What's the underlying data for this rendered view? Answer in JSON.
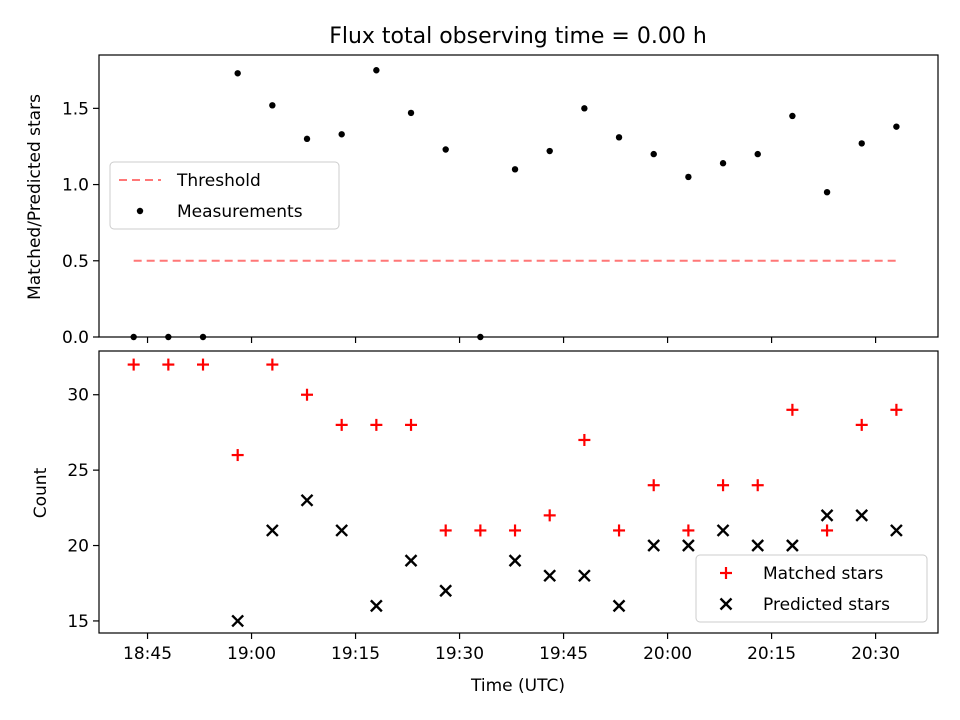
{
  "chart_data": [
    {
      "type": "scatter",
      "title": "Flux total observing time = 0.00 h",
      "xlabel": "",
      "ylabel": "Matched/Predicted stars",
      "x_unit": "time of day (UTC)",
      "ylim": [
        0,
        1.85
      ],
      "yticks": [
        0.0,
        0.5,
        1.0,
        1.5
      ],
      "ytick_labels": [
        "0.0",
        "0.5",
        "1.0",
        "1.5"
      ],
      "legend_position": "center-left",
      "series": [
        {
          "name": "Threshold",
          "kind": "dashed-line",
          "color": "#ff7777",
          "x": [
            "18:43",
            "20:33"
          ],
          "y": [
            0.5,
            0.5
          ]
        },
        {
          "name": "Measurements",
          "kind": "dot",
          "color": "#000000",
          "x": [
            "18:43",
            "18:48",
            "18:53",
            "18:58",
            "19:03",
            "19:08",
            "19:13",
            "19:18",
            "19:23",
            "19:28",
            "19:33",
            "19:38",
            "19:43",
            "19:48",
            "19:53",
            "19:58",
            "20:03",
            "20:08",
            "20:13",
            "20:18",
            "20:23",
            "20:28",
            "20:33"
          ],
          "y": [
            0.0,
            0.0,
            0.0,
            1.73,
            1.52,
            1.3,
            1.33,
            1.75,
            1.47,
            1.23,
            0.0,
            1.1,
            1.22,
            1.5,
            1.31,
            1.2,
            1.05,
            1.14,
            1.2,
            1.45,
            0.95,
            1.27,
            1.38
          ]
        }
      ]
    },
    {
      "type": "scatter",
      "title": "",
      "xlabel": "Time (UTC)",
      "ylabel": "Count",
      "ylim": [
        14.2,
        32.9
      ],
      "yticks": [
        15,
        20,
        25,
        30
      ],
      "ytick_labels": [
        "15",
        "20",
        "25",
        "30"
      ],
      "xlim": [
        "18:38",
        "20:39"
      ],
      "xticks": [
        "18:45",
        "19:00",
        "19:15",
        "19:30",
        "19:45",
        "20:00",
        "20:15",
        "20:30"
      ],
      "xtick_labels": [
        "18:45",
        "19:00",
        "19:15",
        "19:30",
        "19:45",
        "20:00",
        "20:15",
        "20:30"
      ],
      "legend_position": "lower-right",
      "series": [
        {
          "name": "Matched stars",
          "kind": "plus",
          "color": "#ff0000",
          "x": [
            "18:43",
            "18:48",
            "18:53",
            "18:58",
            "19:03",
            "19:08",
            "19:13",
            "19:18",
            "19:23",
            "19:28",
            "19:33",
            "19:38",
            "19:43",
            "19:48",
            "19:53",
            "19:58",
            "20:03",
            "20:08",
            "20:13",
            "20:18",
            "20:23",
            "20:28",
            "20:33"
          ],
          "y": [
            32,
            32,
            32,
            26,
            32,
            30,
            28,
            28,
            28,
            21,
            21,
            21,
            22,
            27,
            21,
            24,
            21,
            24,
            24,
            29,
            21,
            28,
            29
          ]
        },
        {
          "name": "Predicted stars",
          "kind": "x",
          "color": "#000000",
          "x": [
            "18:58",
            "19:03",
            "19:08",
            "19:13",
            "19:18",
            "19:23",
            "19:28",
            "19:38",
            "19:43",
            "19:48",
            "19:53",
            "19:58",
            "20:03",
            "20:08",
            "20:13",
            "20:18",
            "20:23",
            "20:28",
            "20:33"
          ],
          "y": [
            15,
            21,
            23,
            21,
            16,
            19,
            17,
            19,
            18,
            18,
            16,
            20,
            20,
            21,
            20,
            20,
            22,
            22,
            21
          ]
        }
      ]
    }
  ]
}
